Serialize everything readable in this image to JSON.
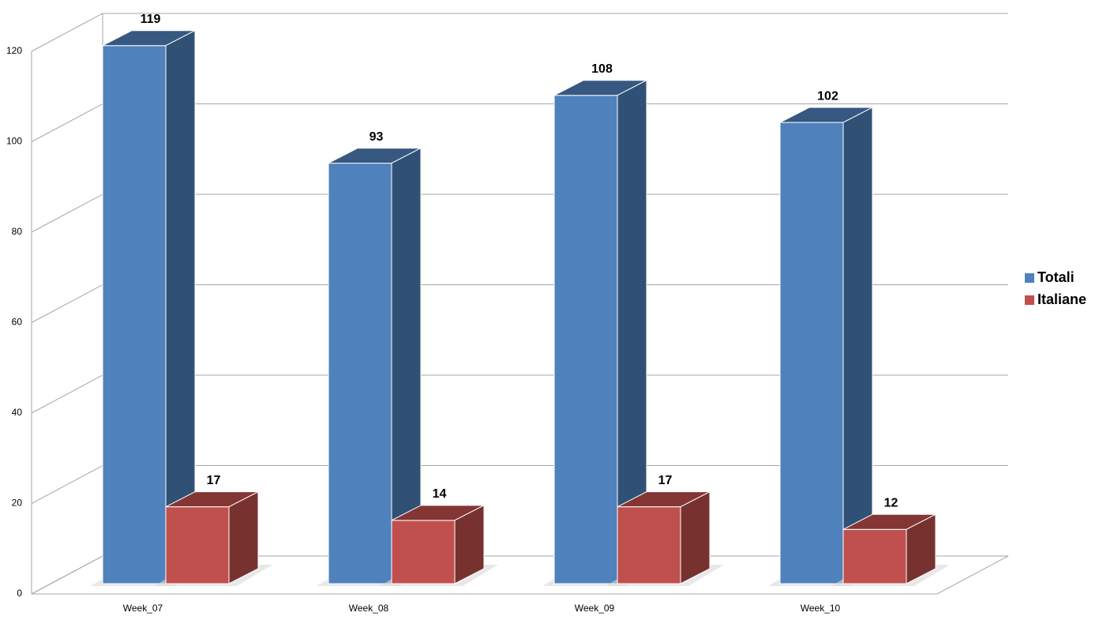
{
  "chart_data": {
    "type": "bar3d",
    "categories": [
      "Week_07",
      "Week_08",
      "Week_09",
      "Week_10"
    ],
    "series": [
      {
        "name": "Totali",
        "color": "#4f81bd",
        "values": [
          119,
          93,
          108,
          102
        ]
      },
      {
        "name": "Italiane",
        "color": "#c0504d",
        "values": [
          17,
          14,
          17,
          12
        ]
      }
    ],
    "ylim": [
      0,
      120
    ],
    "yticks": [
      0,
      20,
      40,
      60,
      80,
      100,
      120
    ],
    "grid": true,
    "legend": "right"
  }
}
